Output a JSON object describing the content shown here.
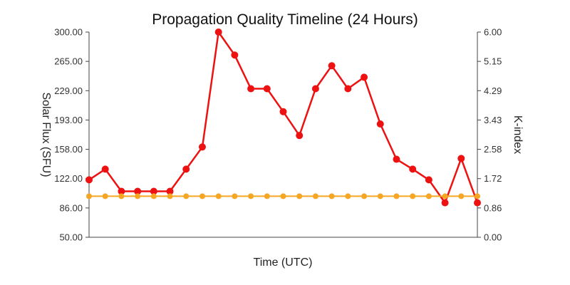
{
  "chart_data": {
    "type": "line",
    "title": "Propagation Quality Timeline (24 Hours)",
    "xlabel": "Time (UTC)",
    "ylabel_left": "Solar Flux (SFU)",
    "ylabel_right": "K-index",
    "y_left_ticks": [
      "50.00",
      "86.00",
      "122.00",
      "158.00",
      "193.00",
      "229.00",
      "265.00",
      "300.00"
    ],
    "y_right_ticks": [
      "0.00",
      "0.86",
      "1.72",
      "2.58",
      "3.43",
      "4.29",
      "5.15",
      "6.00"
    ],
    "ylim_left": [
      50,
      300
    ],
    "ylim_right": [
      0,
      6
    ],
    "x_count": 25,
    "grid": false,
    "series": [
      {
        "axis": "left",
        "color": "#ee1111",
        "values": [
          120,
          133,
          106,
          106,
          106,
          106,
          133,
          160,
          300,
          272,
          231,
          231,
          203,
          174,
          231,
          259,
          231,
          245,
          188,
          145,
          133,
          120,
          92,
          146,
          92
        ]
      },
      {
        "axis": "right",
        "color": "#f5a623",
        "values": [
          1.2,
          1.2,
          1.2,
          1.2,
          1.2,
          1.2,
          1.2,
          1.2,
          1.2,
          1.2,
          1.2,
          1.2,
          1.2,
          1.2,
          1.2,
          1.2,
          1.2,
          1.2,
          1.2,
          1.2,
          1.2,
          1.2,
          1.2,
          1.2,
          1.2
        ]
      }
    ]
  }
}
